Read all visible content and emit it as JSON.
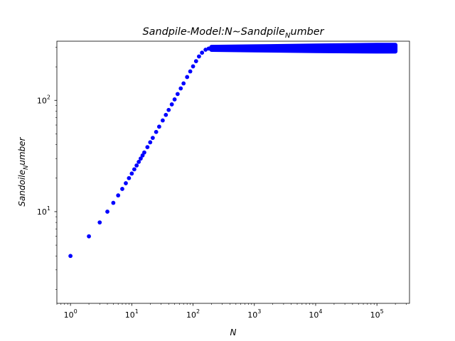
{
  "chart_data": {
    "type": "scatter",
    "title": {
      "base": "Sandpile-Model:N∼Sandpile",
      "sub": "N",
      "tail": "umber"
    },
    "xlabel": "N",
    "ylabel": {
      "base": "Sandoile",
      "sub": "N",
      "tail": "umber"
    },
    "xscale": "log",
    "yscale": "log",
    "xlim": [
      0.6,
      340000
    ],
    "ylim": [
      1.5,
      340
    ],
    "x_ticks": [
      {
        "value": 1,
        "base": "10",
        "exp": "0"
      },
      {
        "value": 10,
        "base": "10",
        "exp": "1"
      },
      {
        "value": 100,
        "base": "10",
        "exp": "2"
      },
      {
        "value": 1000,
        "base": "10",
        "exp": "3"
      },
      {
        "value": 10000,
        "base": "10",
        "exp": "4"
      },
      {
        "value": 100000,
        "base": "10",
        "exp": "5"
      }
    ],
    "y_ticks": [
      {
        "value": 10,
        "base": "10",
        "exp": "1"
      },
      {
        "value": 100,
        "base": "10",
        "exp": "2"
      }
    ],
    "marker_color": "#0000ff",
    "grid": false,
    "legend": "none",
    "series": [
      {
        "x": [
          1,
          2,
          3,
          4,
          5,
          6,
          7,
          8,
          9,
          10,
          11,
          12,
          13,
          14,
          15,
          16,
          18,
          20,
          22,
          25,
          28,
          32,
          36,
          40,
          45,
          50,
          56,
          63,
          70,
          80,
          90,
          100,
          112,
          125,
          140,
          160,
          180,
          200,
          250,
          300,
          400,
          500,
          700,
          1000,
          1500,
          2000,
          3000,
          5000,
          7000,
          10000,
          15000,
          20000,
          30000,
          50000,
          70000,
          100000,
          150000,
          200000
        ],
        "y": [
          4,
          6,
          8,
          10,
          12,
          14,
          16,
          18,
          20,
          22,
          24,
          26,
          28,
          30,
          32,
          34,
          38,
          42,
          46,
          52,
          58,
          66,
          74,
          82,
          92,
          102,
          114,
          128,
          142,
          162,
          182,
          202,
          225,
          248,
          268,
          285,
          292,
          295,
          296,
          294,
          295,
          293,
          295,
          294,
          295,
          293,
          296,
          294,
          295,
          294,
          296,
          295,
          294,
          296,
          295,
          294,
          295,
          296
        ],
        "y_band": [
          {
            "x": 200,
            "low": 285,
            "high": 302
          },
          {
            "x": 1000,
            "low": 282,
            "high": 305
          },
          {
            "x": 10000,
            "low": 278,
            "high": 310
          },
          {
            "x": 100000,
            "low": 275,
            "high": 315
          },
          {
            "x": 200000,
            "low": 275,
            "high": 315
          }
        ]
      }
    ]
  }
}
